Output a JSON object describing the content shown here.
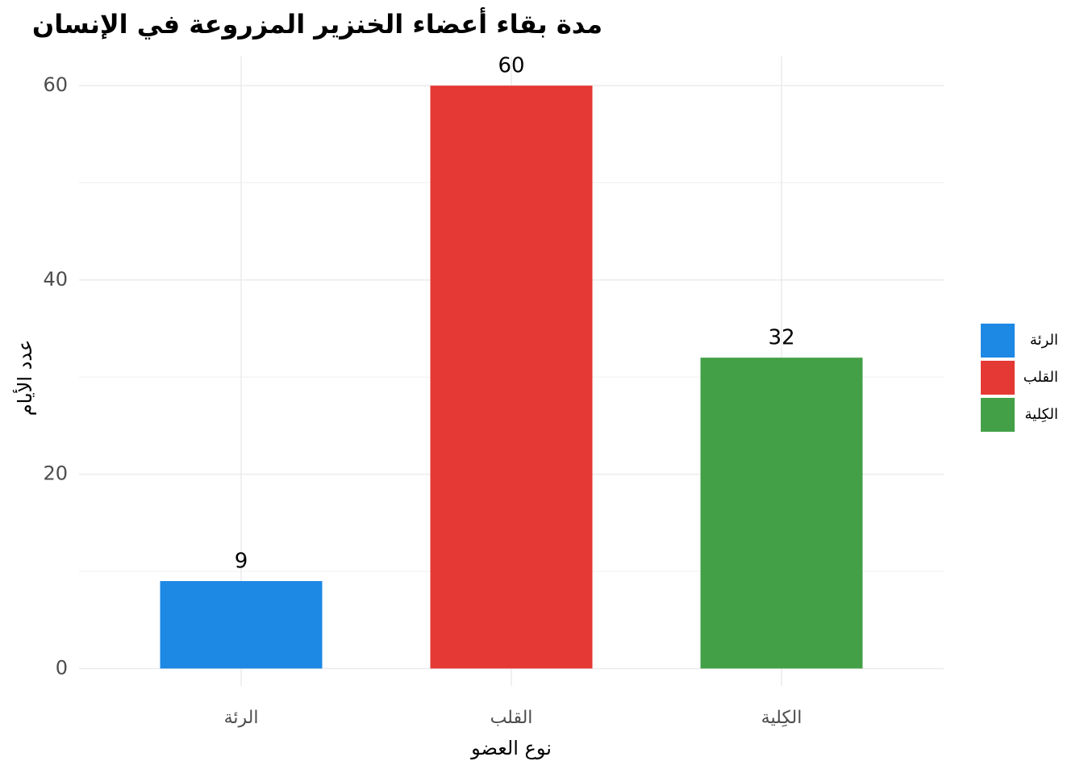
{
  "chart_data": {
    "type": "bar",
    "title": "مدة بقاء أعضاء الخنزير المزروعة في الإنسان",
    "x_label": "نوع العضو",
    "y_label": "عدد الأيام",
    "categories": [
      "الرئة",
      "القلب",
      "الكِلية"
    ],
    "values": [
      9,
      60,
      32
    ],
    "colors": [
      "#1E88E5",
      "#E53935",
      "#43A047"
    ],
    "ylim": [
      -1.8,
      63
    ],
    "yticks": [
      0,
      20,
      40,
      60
    ],
    "yminorticks": [
      10,
      30,
      50
    ],
    "grid": true,
    "legend": "right"
  }
}
